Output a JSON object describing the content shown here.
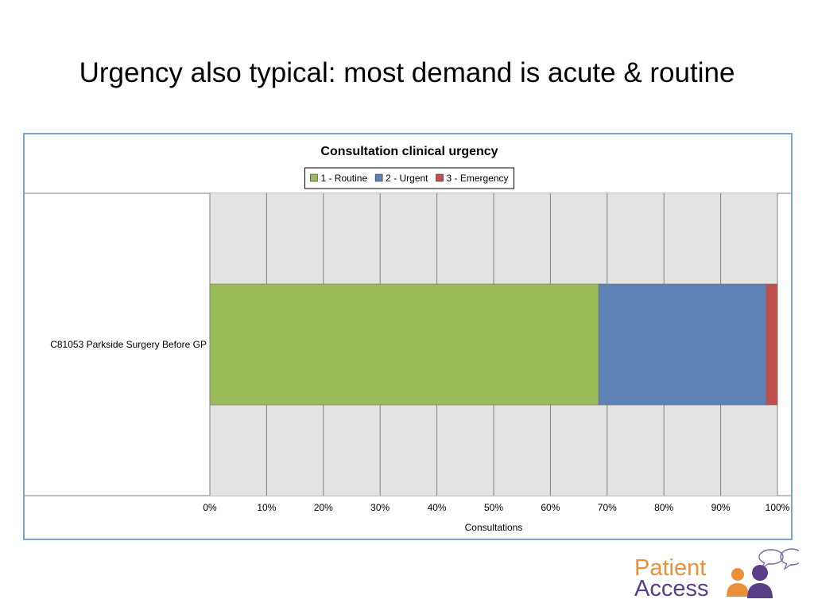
{
  "slide": {
    "title": "Urgency also typical:  most demand is acute & routine"
  },
  "logo": {
    "line1": "Patient",
    "line2": "Access",
    "color1": "#e8913a",
    "color2": "#5a3f86",
    "icon": "people-speech-bubble-icon"
  },
  "chart_data": {
    "type": "bar",
    "orientation": "horizontal",
    "stacked": true,
    "percent": true,
    "title": "Consultation clinical urgency",
    "xlabel": "Consultations",
    "ylabel": "",
    "xlim": [
      0,
      100
    ],
    "x_ticks": [
      "0%",
      "10%",
      "20%",
      "30%",
      "40%",
      "50%",
      "60%",
      "70%",
      "80%",
      "90%",
      "100%"
    ],
    "categories": [
      "C81053 Parkside Surgery   Before   GP"
    ],
    "series": [
      {
        "name": "1 - Routine",
        "values": [
          68.5
        ],
        "color": "#9bbb59"
      },
      {
        "name": "2 - Urgent",
        "values": [
          29.5
        ],
        "color": "#5e82b5"
      },
      {
        "name": "3 - Emergency",
        "values": [
          2.0
        ],
        "color": "#c0504d"
      }
    ],
    "grid": true,
    "legend": "top"
  }
}
